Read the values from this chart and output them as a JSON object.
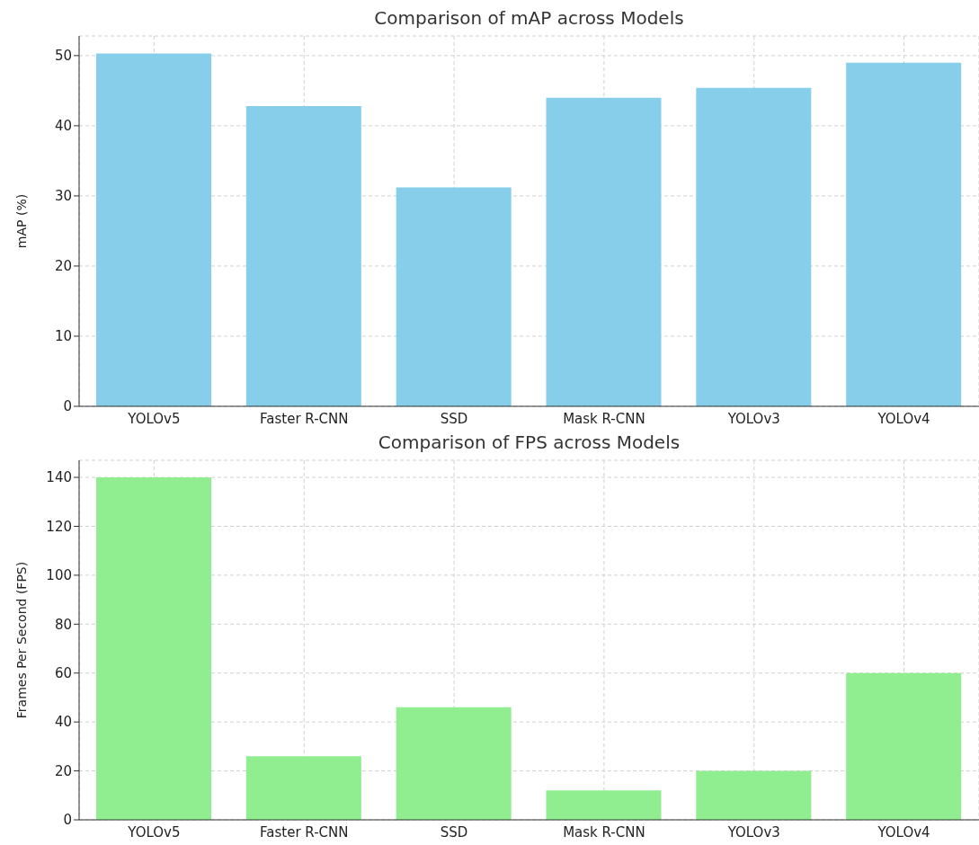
{
  "chart_data": [
    {
      "type": "bar",
      "title": "Comparison of mAP across Models",
      "ylabel": "mAP (%)",
      "categories": [
        "YOLOv5",
        "Faster R-CNN",
        "SSD",
        "Mask R-CNN",
        "YOLOv3",
        "YOLOv4"
      ],
      "values": [
        50.3,
        42.8,
        31.2,
        44.0,
        45.4,
        49.0
      ],
      "color": "#87ceeb",
      "ylim": [
        0,
        52.8
      ],
      "yticks": [
        0,
        10,
        20,
        30,
        40,
        50
      ],
      "grid": true
    },
    {
      "type": "bar",
      "title": "Comparison of FPS across Models",
      "ylabel": "Frames Per Second (FPS)",
      "categories": [
        "YOLOv5",
        "Faster R-CNN",
        "SSD",
        "Mask R-CNN",
        "YOLOv3",
        "YOLOv4"
      ],
      "values": [
        140,
        26,
        46,
        12,
        20,
        60
      ],
      "color": "#90ee90",
      "ylim": [
        0,
        147
      ],
      "yticks": [
        0,
        20,
        40,
        60,
        80,
        100,
        120,
        140
      ],
      "grid": true
    }
  ]
}
